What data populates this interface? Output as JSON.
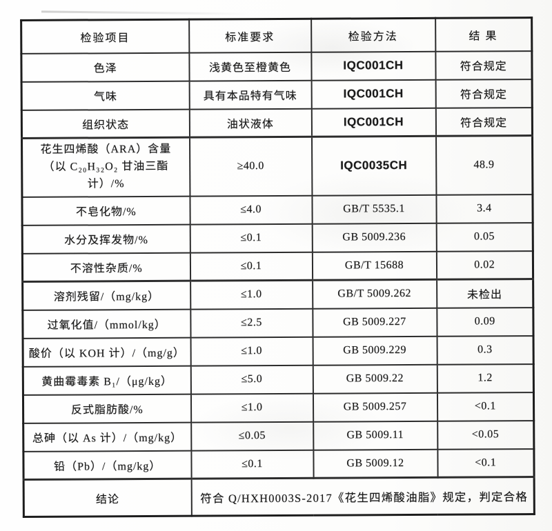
{
  "table": {
    "headers": {
      "item": "检验项目",
      "standard": "标准要求",
      "method": "检验方法",
      "result": "结 果"
    },
    "rows": [
      {
        "item": "色泽",
        "standard": "浅黄色至橙黄色",
        "method": "IQC001CH",
        "result": "符合规定"
      },
      {
        "item": "气味",
        "standard": "具有本品特有气味",
        "method": "IQC001CH",
        "result": "符合规定"
      },
      {
        "item": "组织状态",
        "standard": "油状液体",
        "method": "IQC001CH",
        "result": "符合规定"
      },
      {
        "item_line1": "花生四烯酸（ARA）含量",
        "item_line2": "（以 C₂₀H₃₂O₂ 甘油三酯计）/%",
        "standard": "≥40.0",
        "method": "IQC0035CH",
        "result": "48.9"
      },
      {
        "item": "不皂化物/%",
        "standard": "≤4.0",
        "method": "GB/T 5535.1",
        "result": "3.4"
      },
      {
        "item": "水分及挥发物/%",
        "standard": "≤0.1",
        "method": "GB 5009.236",
        "result": "0.05"
      },
      {
        "item": "不溶性杂质/%",
        "standard": "≤0.1",
        "method": "GB/T 15688",
        "result": "0.02"
      },
      {
        "item": "溶剂残留/（mg/kg）",
        "standard": "≤1.0",
        "method": "GB/T 5009.262",
        "result": "未检出"
      },
      {
        "item": "过氧化值/（mmol/kg）",
        "standard": "≤2.5",
        "method": "GB 5009.227",
        "result": "0.09"
      },
      {
        "item": "酸价（以 KOH 计）/（mg/g）",
        "standard": "≤1.0",
        "method": "GB 5009.229",
        "result": "0.3"
      },
      {
        "item": "黄曲霉毒素 B₁/（μg/kg）",
        "standard": "≤5.0",
        "method": "GB 5009.22",
        "result": "1.2"
      },
      {
        "item": "反式脂肪酸/%",
        "standard": "≤1.0",
        "method": "GB 5009.257",
        "result": "<0.1"
      },
      {
        "item": "总砷（以 As 计）/（mg/kg）",
        "standard": "≤0.05",
        "method": "GB 5009.11",
        "result": "<0.05"
      },
      {
        "item": "铅（Pb）/（mg/kg）",
        "standard": "≤0.1",
        "method": "GB 5009.12",
        "result": "<0.1"
      }
    ],
    "conclusion": {
      "label": "结论",
      "text": "符合 Q/HXH0003S-2017《花生四烯酸油脂》规定，判定合格"
    }
  }
}
